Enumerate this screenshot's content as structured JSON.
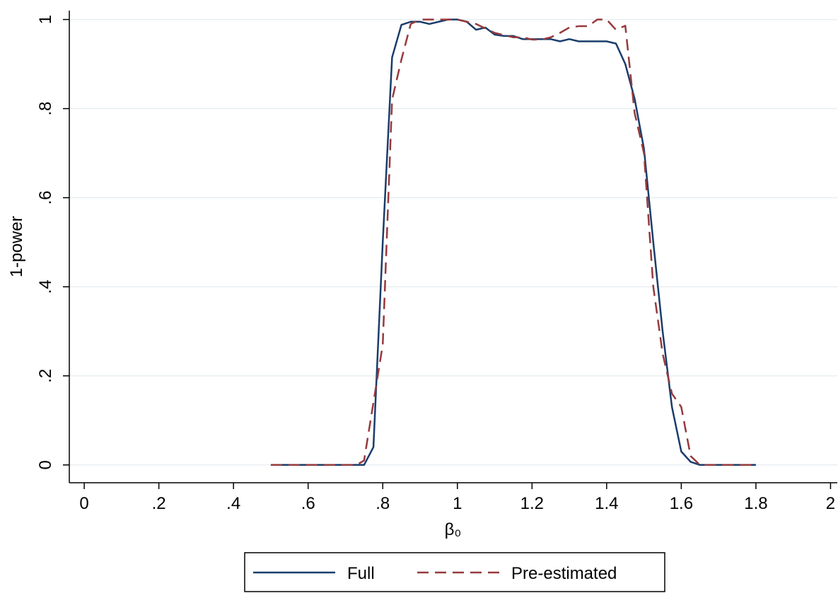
{
  "chart_data": {
    "type": "line",
    "xlabel": "β₀",
    "ylabel": "1-power",
    "xlim": [
      -0.04,
      2.02
    ],
    "ylim": [
      -0.04,
      1.02
    ],
    "x_ticks": [
      0,
      0.2,
      0.4,
      0.6,
      0.8,
      1,
      1.2,
      1.4,
      1.6,
      1.8,
      2
    ],
    "x_tick_labels": [
      "0",
      ".2",
      ".4",
      ".6",
      ".8",
      "1",
      "1.2",
      "1.4",
      "1.6",
      "1.8",
      "2"
    ],
    "y_ticks": [
      0,
      0.2,
      0.4,
      0.6,
      0.8,
      1
    ],
    "y_tick_labels": [
      "0",
      ".2",
      ".4",
      ".6",
      ".8",
      "1"
    ],
    "grid": "horizontal",
    "legend_position": "bottom",
    "series": [
      {
        "name": "Full",
        "color": "#1a3d6b",
        "dash": "solid",
        "x": [
          0.5,
          0.55,
          0.6,
          0.65,
          0.7,
          0.75,
          0.775,
          0.8,
          0.825,
          0.85,
          0.875,
          0.9,
          0.925,
          0.95,
          0.975,
          1.0,
          1.025,
          1.05,
          1.075,
          1.1,
          1.125,
          1.15,
          1.175,
          1.2,
          1.225,
          1.25,
          1.275,
          1.3,
          1.325,
          1.35,
          1.375,
          1.4,
          1.425,
          1.45,
          1.475,
          1.5,
          1.525,
          1.55,
          1.575,
          1.6,
          1.625,
          1.65,
          1.675,
          1.7,
          1.75,
          1.8
        ],
        "y": [
          0,
          0,
          0,
          0,
          0,
          0,
          0.04,
          0.5,
          0.915,
          0.988,
          0.995,
          0.995,
          0.99,
          0.995,
          1.0,
          1.0,
          0.995,
          0.977,
          0.982,
          0.966,
          0.963,
          0.963,
          0.956,
          0.956,
          0.956,
          0.956,
          0.951,
          0.956,
          0.951,
          0.951,
          0.951,
          0.951,
          0.946,
          0.9,
          0.822,
          0.71,
          0.5,
          0.3,
          0.13,
          0.03,
          0.007,
          0,
          0,
          0,
          0,
          0
        ]
      },
      {
        "name": "Pre-estimated",
        "color": "#963a3d",
        "dash": "dashed",
        "x": [
          0.5,
          0.55,
          0.6,
          0.65,
          0.7,
          0.73,
          0.75,
          0.775,
          0.8,
          0.825,
          0.85,
          0.875,
          0.9,
          0.925,
          0.95,
          0.975,
          1.0,
          1.025,
          1.05,
          1.075,
          1.1,
          1.125,
          1.15,
          1.175,
          1.2,
          1.225,
          1.25,
          1.275,
          1.3,
          1.325,
          1.35,
          1.375,
          1.4,
          1.425,
          1.45,
          1.475,
          1.5,
          1.525,
          1.55,
          1.575,
          1.6,
          1.625,
          1.65,
          1.675,
          1.7,
          1.75,
          1.8
        ],
        "y": [
          0,
          0,
          0,
          0,
          0,
          0,
          0.01,
          0.14,
          0.27,
          0.82,
          0.91,
          0.99,
          1.0,
          1.0,
          1.0,
          1.0,
          1.0,
          0.995,
          0.99,
          0.98,
          0.97,
          0.965,
          0.96,
          0.96,
          0.955,
          0.955,
          0.96,
          0.97,
          0.982,
          0.985,
          0.985,
          1.0,
          1.0,
          0.977,
          0.986,
          0.79,
          0.7,
          0.4,
          0.25,
          0.16,
          0.13,
          0.02,
          0,
          0,
          0,
          0,
          0
        ]
      }
    ]
  }
}
